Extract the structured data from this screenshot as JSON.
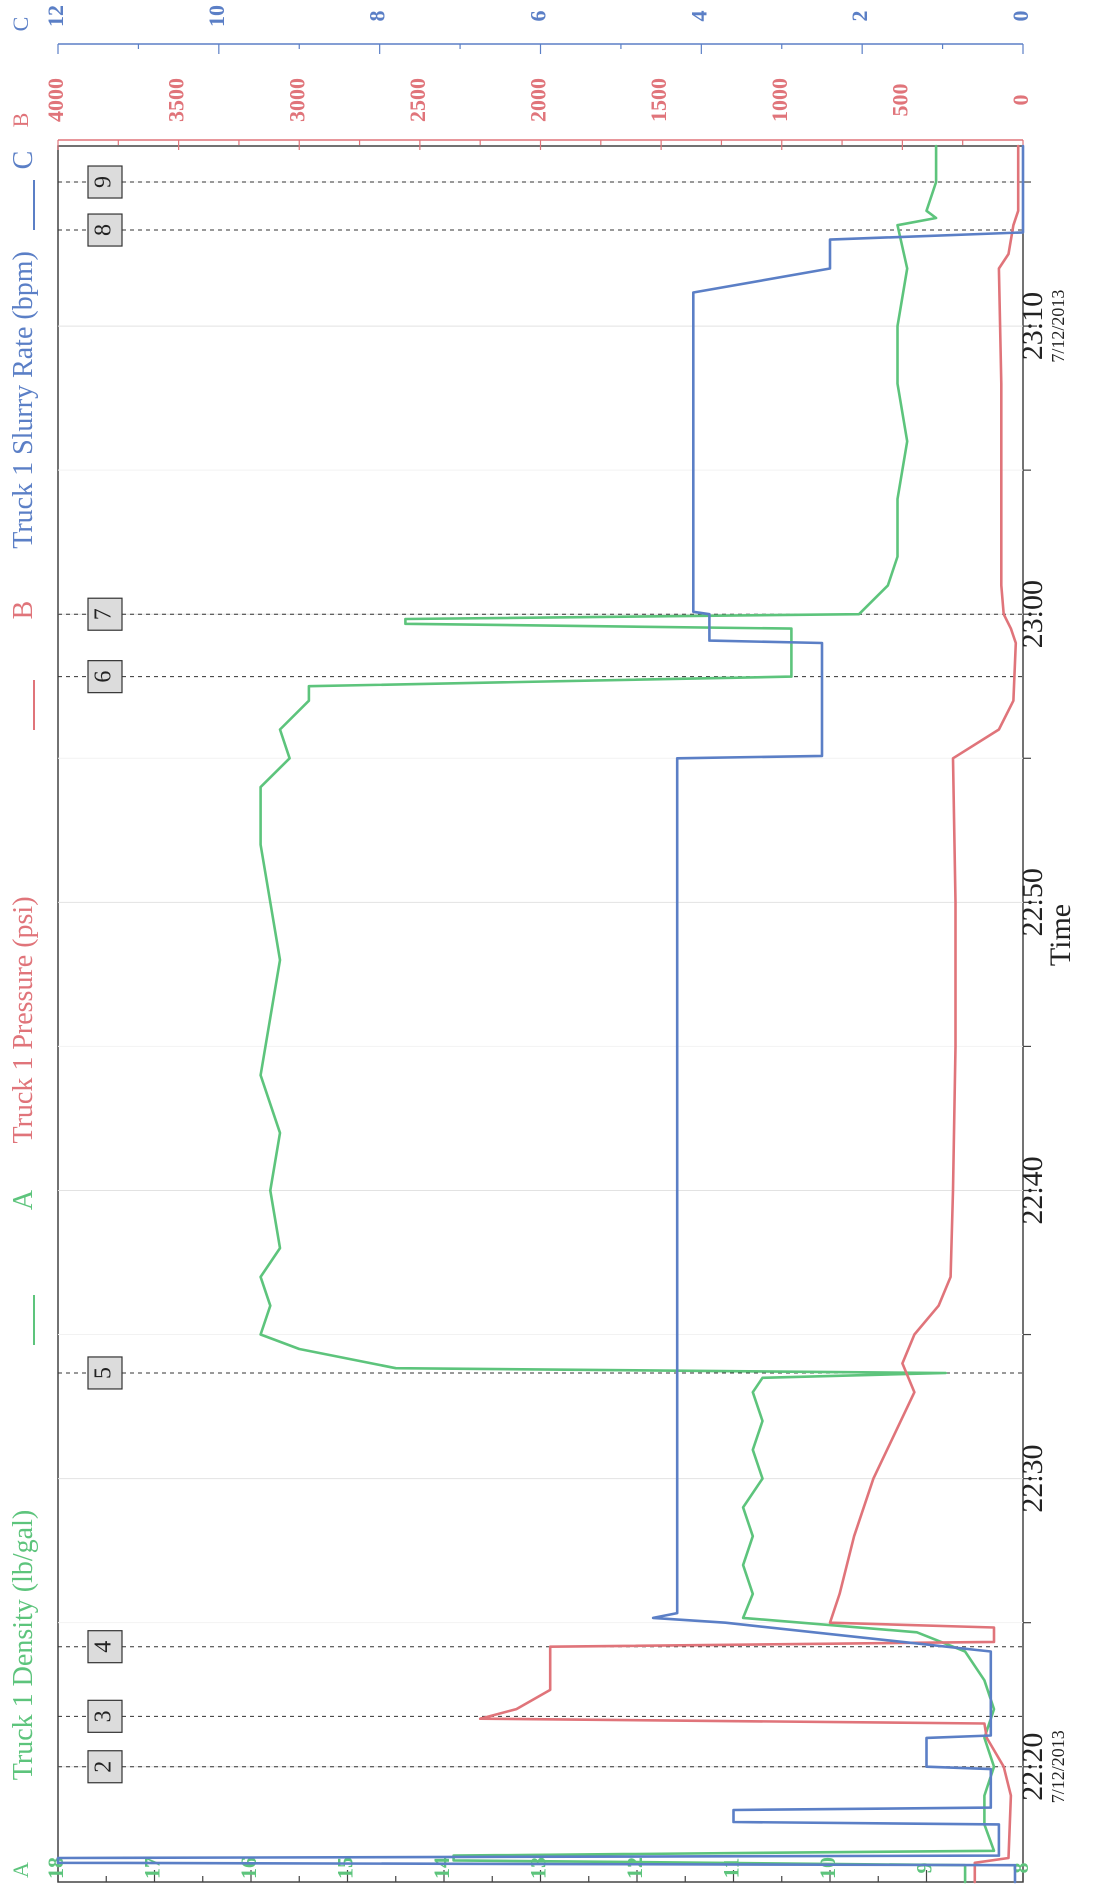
{
  "chart_data": {
    "type": "line",
    "title": "",
    "xlabel": "Time",
    "x_ticks": [
      {
        "time": "22:20",
        "date": "7/12/2013"
      },
      {
        "time": "22:30",
        "date": ""
      },
      {
        "time": "22:40",
        "date": ""
      },
      {
        "time": "22:50",
        "date": ""
      },
      {
        "time": "23:00",
        "date": ""
      },
      {
        "time": "23:10",
        "date": "7/12/2013"
      }
    ],
    "xlim": [
      "22:16:00",
      "23:16:15"
    ],
    "axes": {
      "A": {
        "letter": "A",
        "color": "#5dc47c",
        "ylim": [
          8,
          18
        ],
        "ticks": [
          8,
          9,
          10,
          11,
          12,
          13,
          14,
          15,
          16,
          17,
          18
        ]
      },
      "B": {
        "letter": "B",
        "color": "#e0747a",
        "ylim": [
          0,
          4000
        ],
        "ticks": [
          0,
          500,
          1000,
          1500,
          2000,
          2500,
          3000,
          3500,
          4000
        ]
      },
      "C": {
        "letter": "C",
        "color": "#5b7fc6",
        "ylim": [
          0,
          12
        ],
        "ticks": [
          0,
          2,
          4,
          6,
          8,
          10,
          12
        ]
      }
    },
    "legend_position": "top",
    "series": [
      {
        "name": "Truck 1 Density (lb/gal)",
        "axis": "A",
        "color": "#5dc47c",
        "points": [
          [
            "22:16:00",
            8.6
          ],
          [
            "22:16:35",
            8.6
          ],
          [
            "22:16:45",
            13.9
          ],
          [
            "22:16:55",
            13.9
          ],
          [
            "22:17:05",
            8.3
          ],
          [
            "22:18:00",
            8.4
          ],
          [
            "22:19:00",
            8.4
          ],
          [
            "22:20:00",
            8.3
          ],
          [
            "22:21:00",
            8.4
          ],
          [
            "22:22:00",
            8.3
          ],
          [
            "22:23:00",
            8.4
          ],
          [
            "22:24:00",
            8.6
          ],
          [
            "22:24:40",
            9.1
          ],
          [
            "22:25:10",
            10.9
          ],
          [
            "22:26:00",
            10.8
          ],
          [
            "22:27:00",
            10.9
          ],
          [
            "22:28:00",
            10.8
          ],
          [
            "22:29:00",
            10.9
          ],
          [
            "22:30:00",
            10.7
          ],
          [
            "22:31:00",
            10.8
          ],
          [
            "22:32:00",
            10.7
          ],
          [
            "22:33:00",
            10.8
          ],
          [
            "22:33:30",
            10.7
          ],
          [
            "22:33:40",
            8.8
          ],
          [
            "22:33:50",
            14.5
          ],
          [
            "22:34:30",
            15.5
          ],
          [
            "22:35:00",
            15.9
          ],
          [
            "22:36:00",
            15.8
          ],
          [
            "22:37:00",
            15.9
          ],
          [
            "22:38:00",
            15.7
          ],
          [
            "22:40:00",
            15.8
          ],
          [
            "22:42:00",
            15.7
          ],
          [
            "22:44:00",
            15.9
          ],
          [
            "22:46:00",
            15.8
          ],
          [
            "22:48:00",
            15.7
          ],
          [
            "22:50:00",
            15.8
          ],
          [
            "22:52:00",
            15.9
          ],
          [
            "22:54:00",
            15.9
          ],
          [
            "22:55:00",
            15.6
          ],
          [
            "22:56:00",
            15.7
          ],
          [
            "22:57:00",
            15.4
          ],
          [
            "22:57:30",
            15.4
          ],
          [
            "22:57:50",
            10.4
          ],
          [
            "22:58:30",
            10.4
          ],
          [
            "22:59:30",
            10.4
          ],
          [
            "22:59:40",
            14.4
          ],
          [
            "22:59:50",
            14.4
          ],
          [
            "23:00:00",
            9.7
          ],
          [
            "23:01:00",
            9.4
          ],
          [
            "23:02:00",
            9.3
          ],
          [
            "23:04:00",
            9.3
          ],
          [
            "23:06:00",
            9.2
          ],
          [
            "23:08:00",
            9.3
          ],
          [
            "23:10:00",
            9.3
          ],
          [
            "23:12:00",
            9.2
          ],
          [
            "23:13:30",
            9.3
          ],
          [
            "23:13:45",
            8.9
          ],
          [
            "23:14:00",
            9.0
          ],
          [
            "23:15:00",
            8.9
          ],
          [
            "23:16:15",
            8.9
          ]
        ]
      },
      {
        "name": "Truck 1 Pressure (psi)",
        "axis": "B",
        "color": "#e0747a",
        "points": [
          [
            "22:16:00",
            200
          ],
          [
            "22:16:40",
            200
          ],
          [
            "22:16:50",
            60
          ],
          [
            "22:19:00",
            50
          ],
          [
            "22:20:00",
            80
          ],
          [
            "22:21:00",
            150
          ],
          [
            "22:21:30",
            160
          ],
          [
            "22:21:40",
            2250
          ],
          [
            "22:22:00",
            2100
          ],
          [
            "22:22:40",
            1960
          ],
          [
            "22:24:10",
            1960
          ],
          [
            "22:24:20",
            120
          ],
          [
            "22:24:50",
            120
          ],
          [
            "22:25:00",
            800
          ],
          [
            "22:26:00",
            760
          ],
          [
            "22:28:00",
            700
          ],
          [
            "22:30:00",
            620
          ],
          [
            "22:33:00",
            450
          ],
          [
            "22:34:00",
            500
          ],
          [
            "22:35:00",
            450
          ],
          [
            "22:36:00",
            350
          ],
          [
            "22:37:00",
            300
          ],
          [
            "22:40:00",
            290
          ],
          [
            "22:45:00",
            280
          ],
          [
            "22:50:00",
            280
          ],
          [
            "22:55:00",
            290
          ],
          [
            "22:56:00",
            100
          ],
          [
            "22:57:00",
            40
          ],
          [
            "22:59:00",
            30
          ],
          [
            "22:59:30",
            50
          ],
          [
            "23:00:00",
            80
          ],
          [
            "23:01:00",
            90
          ],
          [
            "23:08:00",
            90
          ],
          [
            "23:12:00",
            100
          ],
          [
            "23:12:30",
            60
          ],
          [
            "23:13:30",
            40
          ],
          [
            "23:14:00",
            20
          ],
          [
            "23:16:15",
            20
          ]
        ]
      },
      {
        "name": "Truck 1 Slurry Rate (bpm)",
        "axis": "C",
        "color": "#5b7fc6",
        "points": [
          [
            "22:16:00",
            0.1
          ],
          [
            "22:16:35",
            0.1
          ],
          [
            "22:16:40",
            12.0
          ],
          [
            "22:16:50",
            12.0
          ],
          [
            "22:16:55",
            0.3
          ],
          [
            "22:18:00",
            0.3
          ],
          [
            "22:18:05",
            3.6
          ],
          [
            "22:18:30",
            3.6
          ],
          [
            "22:18:35",
            0.4
          ],
          [
            "22:19:55",
            0.4
          ],
          [
            "22:20:00",
            1.2
          ],
          [
            "22:21:00",
            1.2
          ],
          [
            "22:21:05",
            0.4
          ],
          [
            "22:24:00",
            0.4
          ],
          [
            "22:25:00",
            3.7
          ],
          [
            "22:25:10",
            4.6
          ],
          [
            "22:25:20",
            4.3
          ],
          [
            "22:55:00",
            4.3
          ],
          [
            "22:55:05",
            2.5
          ],
          [
            "22:59:00",
            2.5
          ],
          [
            "22:59:05",
            3.9
          ],
          [
            "23:00:00",
            3.9
          ],
          [
            "23:00:05",
            4.1
          ],
          [
            "23:11:10",
            4.1
          ],
          [
            "23:12:00",
            2.4
          ],
          [
            "23:13:00",
            2.4
          ],
          [
            "23:13:15",
            0.0
          ],
          [
            "23:16:15",
            0.0
          ]
        ]
      }
    ],
    "markers": [
      {
        "label": "2",
        "time": "22:20:00"
      },
      {
        "label": "3",
        "time": "22:21:45"
      },
      {
        "label": "4",
        "time": "22:24:10"
      },
      {
        "label": "5",
        "time": "22:33:40"
      },
      {
        "label": "6",
        "time": "22:57:50"
      },
      {
        "label": "7",
        "time": "23:00:00"
      },
      {
        "label": "8",
        "time": "23:13:20"
      },
      {
        "label": "9",
        "time": "23:15:00"
      }
    ]
  }
}
